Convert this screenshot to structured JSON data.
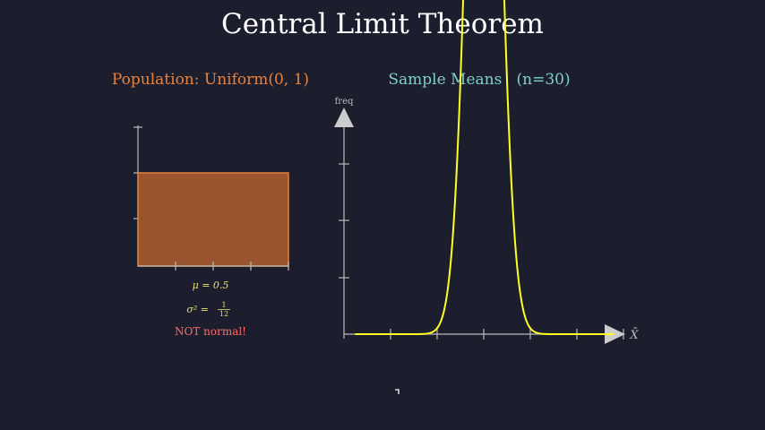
{
  "title": "Central Limit Theorem",
  "left_panel": {
    "heading": "Population: Uniform(0, 1)",
    "mean_label": "μ = 0.5",
    "variance_prefix": "σ² =",
    "variance_numerator": "1",
    "variance_denominator": "12",
    "note": "NOT normal!"
  },
  "right_panel": {
    "heading": "Sample Means   (n=30)",
    "y_axis_label": "freq",
    "x_axis_label": "X̄"
  },
  "colors": {
    "background": "#1c1e2e",
    "title": "#ffffff",
    "left_heading": "#e8823e",
    "uniform_fill": "#9a552f",
    "uniform_stroke": "#e0803a",
    "right_heading": "#7fd0c8",
    "curve": "#ffff22",
    "axis": "#bbbbbb",
    "stats_text": "#e8e070",
    "note_text": "#ff6a6a"
  },
  "chart_data": [
    {
      "type": "area",
      "title": "Population: Uniform(0, 1)",
      "x": [
        0,
        1
      ],
      "y": [
        1,
        1
      ],
      "xlim": [
        0,
        1
      ],
      "x_ticks": [
        0.25,
        0.5,
        0.75
      ],
      "y_ticks_count": 3
    },
    {
      "type": "line",
      "title": "Sample Means   (n=30)",
      "ylabel": "freq",
      "xlabel": "X̄",
      "distribution": "normal",
      "mean": 0.5,
      "std": 0.0527,
      "xlim": [
        0,
        1
      ],
      "x_ticks_count": 6,
      "y_ticks_count": 3
    }
  ]
}
